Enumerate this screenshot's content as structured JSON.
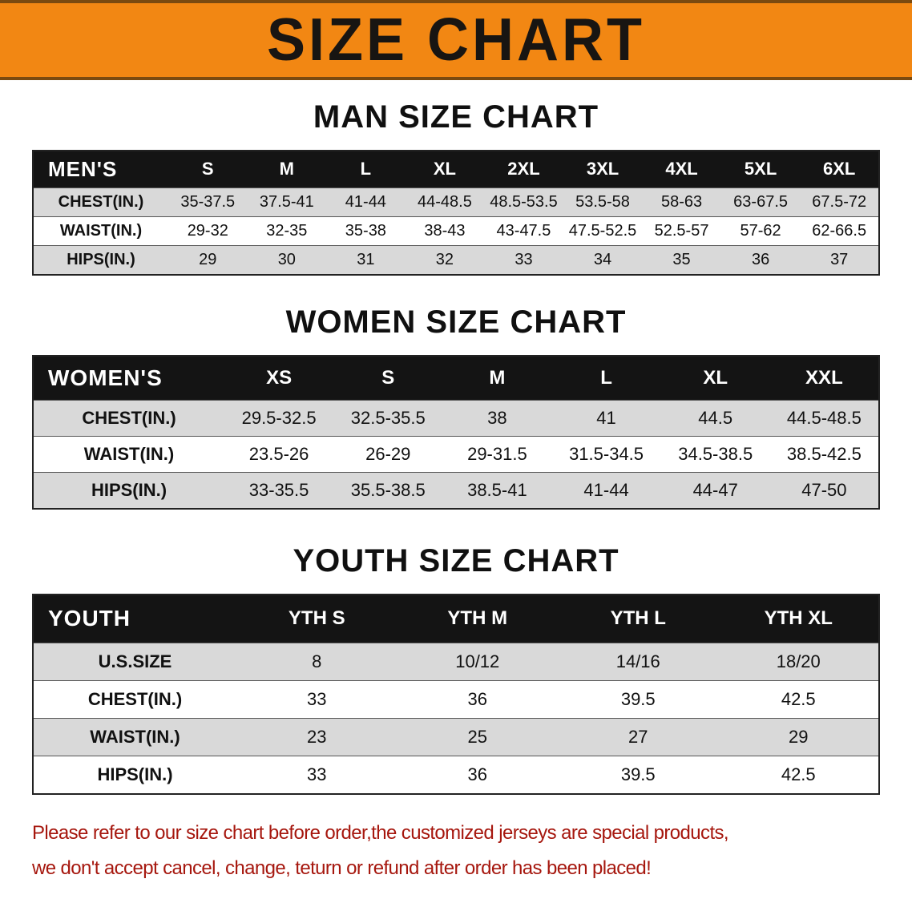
{
  "banner": {
    "title": "SIZE CHART"
  },
  "colors": {
    "banner_bg": "#f28713",
    "banner_border": "#7a4a10",
    "table_header_bg": "#141414",
    "row_gray": "#d9d9d9",
    "disclaimer_red": "#a6170e"
  },
  "sections": [
    {
      "heading": "MAN SIZE CHART",
      "table": {
        "title": "MEN'S",
        "columns": [
          "S",
          "M",
          "L",
          "XL",
          "2XL",
          "3XL",
          "4XL",
          "5XL",
          "6XL"
        ],
        "rows": [
          {
            "label": "CHEST(IN.)",
            "values": [
              "35-37.5",
              "37.5-41",
              "41-44",
              "44-48.5",
              "48.5-53.5",
              "53.5-58",
              "58-63",
              "63-67.5",
              "67.5-72"
            ]
          },
          {
            "label": "WAIST(IN.)",
            "values": [
              "29-32",
              "32-35",
              "35-38",
              "38-43",
              "43-47.5",
              "47.5-52.5",
              "52.5-57",
              "57-62",
              "62-66.5"
            ]
          },
          {
            "label": "HIPS(IN.)",
            "values": [
              "29",
              "30",
              "31",
              "32",
              "33",
              "34",
              "35",
              "36",
              "37"
            ]
          }
        ]
      }
    },
    {
      "heading": "WOMEN SIZE CHART",
      "table": {
        "title": "WOMEN'S",
        "columns": [
          "XS",
          "S",
          "M",
          "L",
          "XL",
          "XXL"
        ],
        "rows": [
          {
            "label": "CHEST(IN.)",
            "values": [
              "29.5-32.5",
              "32.5-35.5",
              "38",
              "41",
              "44.5",
              "44.5-48.5"
            ]
          },
          {
            "label": "WAIST(IN.)",
            "values": [
              "23.5-26",
              "26-29",
              "29-31.5",
              "31.5-34.5",
              "34.5-38.5",
              "38.5-42.5"
            ]
          },
          {
            "label": "HIPS(IN.)",
            "values": [
              "33-35.5",
              "35.5-38.5",
              "38.5-41",
              "41-44",
              "44-47",
              "47-50"
            ]
          }
        ]
      }
    },
    {
      "heading": "YOUTH SIZE CHART",
      "table": {
        "title": "YOUTH",
        "columns": [
          "YTH S",
          "YTH M",
          "YTH L",
          "YTH XL"
        ],
        "rows": [
          {
            "label": "U.S.SIZE",
            "values": [
              "8",
              "10/12",
              "14/16",
              "18/20"
            ]
          },
          {
            "label": "CHEST(IN.)",
            "values": [
              "33",
              "36",
              "39.5",
              "42.5"
            ]
          },
          {
            "label": "WAIST(IN.)",
            "values": [
              "23",
              "25",
              "27",
              "29"
            ]
          },
          {
            "label": "HIPS(IN.)",
            "values": [
              "33",
              "36",
              "39.5",
              "42.5"
            ]
          }
        ]
      }
    }
  ],
  "disclaimer": {
    "lines": [
      "Please refer to our size chart before order,the customized jerseys are special products,",
      "we don't accept cancel, change, teturn or refund after order has been placed!"
    ]
  }
}
